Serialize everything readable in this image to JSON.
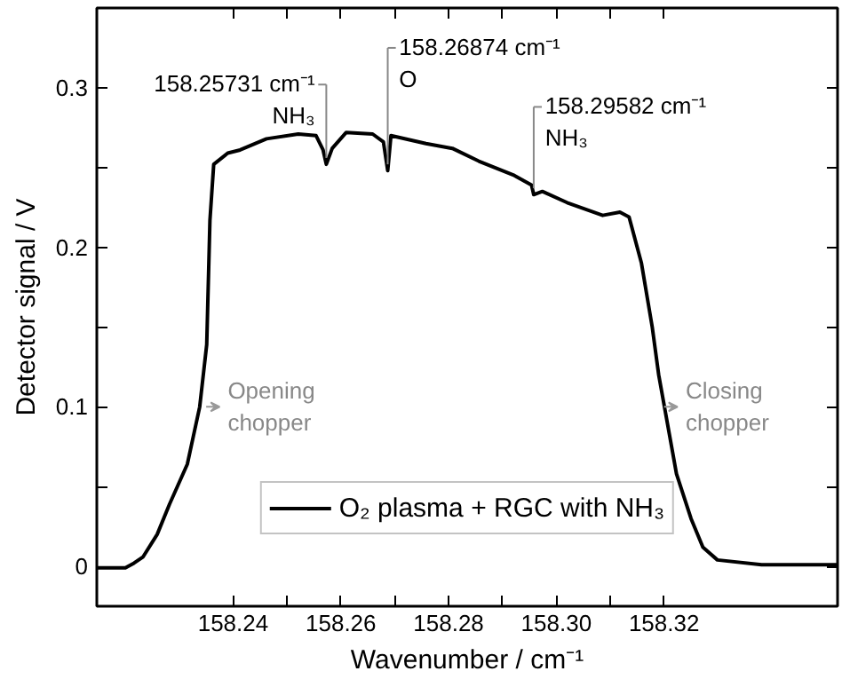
{
  "chart_data": {
    "type": "line",
    "xlabel": "Wavenumber / cm⁻¹",
    "ylabel": "Detector signal / V",
    "xlim": [
      158.2147,
      158.3522
    ],
    "ylim": [
      -0.025,
      0.35
    ],
    "xticks": [
      158.24,
      {
        "value": 158.25,
        "label": null
      },
      158.26,
      {
        "value": 158.27,
        "label": null
      },
      158.28,
      {
        "value": 158.29,
        "label": null
      },
      {
        "value": 158.3,
        "label": "158.30"
      },
      {
        "value": 158.31,
        "label": null
      },
      158.32
    ],
    "yticks": [
      0,
      {
        "value": 0.05,
        "label": null
      },
      0.1,
      {
        "value": 0.15,
        "label": null
      },
      0.2,
      {
        "value": 0.25,
        "label": null
      },
      0.3
    ],
    "grid": false,
    "legend": "bottom",
    "marker": "none",
    "line_style": "solid",
    "x": [
      158.2147,
      158.2174,
      158.22,
      158.2216,
      158.2233,
      158.2259,
      158.2282,
      158.2315,
      158.2338,
      158.2351,
      158.2357,
      158.2364,
      158.239,
      158.2413,
      158.2462,
      158.2521,
      158.2554,
      158.2567,
      158.2573,
      158.2584,
      158.261,
      158.2659,
      158.2679,
      158.2687,
      158.2693,
      158.2758,
      158.2807,
      158.2856,
      158.2922,
      158.2954,
      158.2958,
      158.2974,
      158.302,
      158.3086,
      158.3118,
      158.3135,
      158.3158,
      158.3178,
      158.319,
      158.3223,
      158.325,
      158.3272,
      158.3299,
      158.3381,
      158.3522
    ],
    "series": [
      {
        "name": "O₂ plasma + RGC with NH₃",
        "color": "#000000",
        "values": [
          -0.001,
          -0.001,
          -0.001,
          0.002,
          0.006,
          0.02,
          0.039,
          0.064,
          0.1,
          0.139,
          0.217,
          0.252,
          0.259,
          0.261,
          0.268,
          0.271,
          0.27,
          0.261,
          0.252,
          0.262,
          0.272,
          0.271,
          0.266,
          0.248,
          0.27,
          0.265,
          0.262,
          0.254,
          0.245,
          0.239,
          0.233,
          0.235,
          0.228,
          0.22,
          0.222,
          0.219,
          0.19,
          0.15,
          0.12,
          0.058,
          0.03,
          0.012,
          0.004,
          0.001,
          0.001
        ]
      }
    ],
    "annotations": [
      {
        "text": "158.25731 cm⁻¹\nNH₃",
        "x": 158.2573,
        "y": 0.252
      },
      {
        "text": "158.26874 cm⁻¹\nO",
        "x": 158.2687,
        "y": 0.248
      },
      {
        "text": "158.29582 cm⁻¹\nNH₃",
        "x": 158.2958,
        "y": 0.233
      },
      {
        "text": "Opening\nchopper",
        "x": 158.2345,
        "y": 0.1
      },
      {
        "text": "Closing\nchopper",
        "x": 158.3195,
        "y": 0.1
      }
    ]
  }
}
